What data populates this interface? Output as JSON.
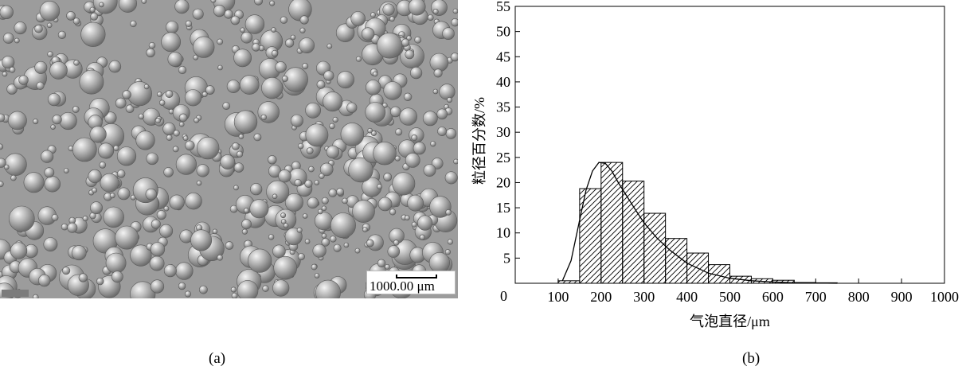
{
  "panel_a": {
    "caption": "(a)",
    "scale_label": "1000.00 μm",
    "image_content": "micrograph-of-foam-bubbles"
  },
  "panel_b": {
    "caption": "(b)"
  },
  "chart_data": {
    "type": "bar",
    "title": "",
    "xlabel": "气泡直径/μm",
    "ylabel": "粒径百分数/%",
    "xlim": [
      0,
      1000
    ],
    "ylim": [
      0,
      55
    ],
    "x_tick_labels": [
      "0",
      "100",
      "200",
      "300",
      "400",
      "500",
      "600",
      "700",
      "800",
      "900",
      "1000"
    ],
    "y_tick_labels": [
      "5",
      "10",
      "15",
      "20",
      "25",
      "30",
      "35",
      "40",
      "45",
      "50",
      "55"
    ],
    "bin_width": 50,
    "bins": [
      {
        "start": 100,
        "value": 0.5
      },
      {
        "start": 150,
        "value": 18.8
      },
      {
        "start": 200,
        "value": 24.0
      },
      {
        "start": 250,
        "value": 20.3
      },
      {
        "start": 300,
        "value": 13.9
      },
      {
        "start": 350,
        "value": 8.9
      },
      {
        "start": 400,
        "value": 6.0
      },
      {
        "start": 450,
        "value": 3.7
      },
      {
        "start": 500,
        "value": 1.4
      },
      {
        "start": 550,
        "value": 0.9
      },
      {
        "start": 600,
        "value": 0.6
      },
      {
        "start": 650,
        "value": 0.15
      },
      {
        "start": 700,
        "value": 0.1
      }
    ],
    "fit_curve": {
      "type": "line",
      "x": [
        110,
        130,
        150,
        165,
        180,
        195,
        210,
        225,
        240,
        260,
        280,
        300,
        330,
        360,
        400,
        450,
        500,
        550,
        600,
        650,
        700,
        750
      ],
      "y": [
        0.5,
        4.5,
        12.5,
        18.5,
        22.3,
        24.0,
        23.8,
        22.3,
        20.0,
        17.3,
        14.6,
        12.0,
        9.0,
        6.6,
        4.0,
        2.0,
        1.0,
        0.5,
        0.25,
        0.1,
        0.05,
        0.0
      ]
    },
    "grid": false,
    "legend": "none"
  }
}
